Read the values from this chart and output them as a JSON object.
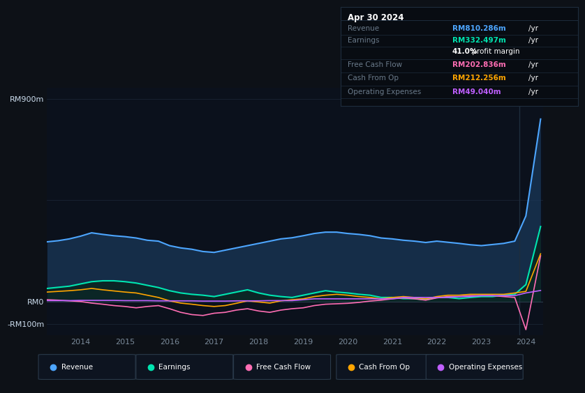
{
  "bg_color": "#0d1117",
  "panel_bg": "#0b111c",
  "info_bg": "#080c12",
  "title": "Apr 30 2024",
  "ylim": [
    -150,
    950
  ],
  "yticks_labels": [
    "RM900m",
    "RM0",
    "-RM100m"
  ],
  "yticks_values": [
    900,
    0,
    -100
  ],
  "xlabel_color": "#7a8a9a",
  "ylabel_color": "#ccddee",
  "grid_color": "#1a2535",
  "years": [
    2013.25,
    2013.5,
    2013.75,
    2014.0,
    2014.25,
    2014.5,
    2014.75,
    2015.0,
    2015.25,
    2015.5,
    2015.75,
    2016.0,
    2016.25,
    2016.5,
    2016.75,
    2017.0,
    2017.25,
    2017.5,
    2017.75,
    2018.0,
    2018.25,
    2018.5,
    2018.75,
    2019.0,
    2019.25,
    2019.5,
    2019.75,
    2020.0,
    2020.25,
    2020.5,
    2020.75,
    2021.0,
    2021.25,
    2021.5,
    2021.75,
    2022.0,
    2022.25,
    2022.5,
    2022.75,
    2023.0,
    2023.25,
    2023.5,
    2023.75,
    2024.0,
    2024.33
  ],
  "revenue": [
    265,
    270,
    278,
    290,
    305,
    298,
    292,
    288,
    282,
    272,
    268,
    248,
    238,
    232,
    222,
    218,
    228,
    238,
    248,
    258,
    268,
    278,
    283,
    292,
    302,
    308,
    308,
    302,
    298,
    292,
    282,
    278,
    272,
    268,
    262,
    268,
    263,
    258,
    252,
    248,
    253,
    258,
    268,
    380,
    810
  ],
  "earnings": [
    58,
    63,
    68,
    78,
    88,
    92,
    92,
    88,
    82,
    72,
    62,
    48,
    38,
    32,
    28,
    22,
    32,
    42,
    52,
    38,
    28,
    22,
    18,
    28,
    38,
    48,
    42,
    38,
    32,
    28,
    18,
    18,
    13,
    13,
    8,
    18,
    18,
    13,
    18,
    22,
    22,
    28,
    32,
    75,
    333
  ],
  "free_cash_flow": [
    8,
    6,
    3,
    0,
    -7,
    -12,
    -18,
    -22,
    -28,
    -22,
    -18,
    -32,
    -48,
    -58,
    -62,
    -52,
    -48,
    -38,
    -32,
    -42,
    -48,
    -38,
    -32,
    -28,
    -18,
    -12,
    -10,
    -8,
    -4,
    2,
    6,
    12,
    16,
    12,
    6,
    16,
    22,
    22,
    26,
    26,
    26,
    22,
    18,
    -125,
    203
  ],
  "cash_from_op": [
    42,
    45,
    48,
    52,
    58,
    52,
    47,
    42,
    38,
    28,
    18,
    3,
    -7,
    -12,
    -18,
    -22,
    -18,
    -8,
    3,
    -2,
    -7,
    3,
    8,
    12,
    22,
    28,
    32,
    28,
    22,
    18,
    12,
    18,
    22,
    18,
    12,
    22,
    28,
    28,
    32,
    32,
    32,
    32,
    38,
    45,
    212
  ],
  "operating_expenses": [
    4,
    4,
    4,
    5,
    5,
    5,
    5,
    4,
    4,
    4,
    3,
    3,
    3,
    3,
    2,
    2,
    2,
    3,
    3,
    3,
    4,
    4,
    4,
    8,
    12,
    12,
    12,
    12,
    12,
    12,
    12,
    12,
    18,
    18,
    18,
    18,
    18,
    22,
    22,
    26,
    26,
    26,
    26,
    38,
    49
  ],
  "revenue_color": "#4da6ff",
  "earnings_color": "#00e5b0",
  "free_cash_flow_color": "#ff6eb4",
  "cash_from_op_color": "#ffa500",
  "operating_expenses_color": "#bf5fff",
  "revenue_fill_color": "#1a3a5c",
  "earnings_fill_color": "#0a2520",
  "legend_items": [
    "Revenue",
    "Earnings",
    "Free Cash Flow",
    "Cash From Op",
    "Operating Expenses"
  ],
  "legend_colors": [
    "#4da6ff",
    "#00e5b0",
    "#ff6eb4",
    "#ffa500",
    "#bf5fff"
  ],
  "table_rows": [
    {
      "label": "Revenue",
      "value": "RM810.286m",
      "vcolor": "#4da6ff",
      "extra": null
    },
    {
      "label": "Earnings",
      "value": "RM332.497m",
      "vcolor": "#00e5b0",
      "extra": "41.0% profit margin"
    },
    {
      "label": "Free Cash Flow",
      "value": "RM202.836m",
      "vcolor": "#ff6eb4",
      "extra": null
    },
    {
      "label": "Cash From Op",
      "value": "RM212.256m",
      "vcolor": "#ffa500",
      "extra": null
    },
    {
      "label": "Operating Expenses",
      "value": "RM49.040m",
      "vcolor": "#bf5fff",
      "extra": null
    }
  ]
}
